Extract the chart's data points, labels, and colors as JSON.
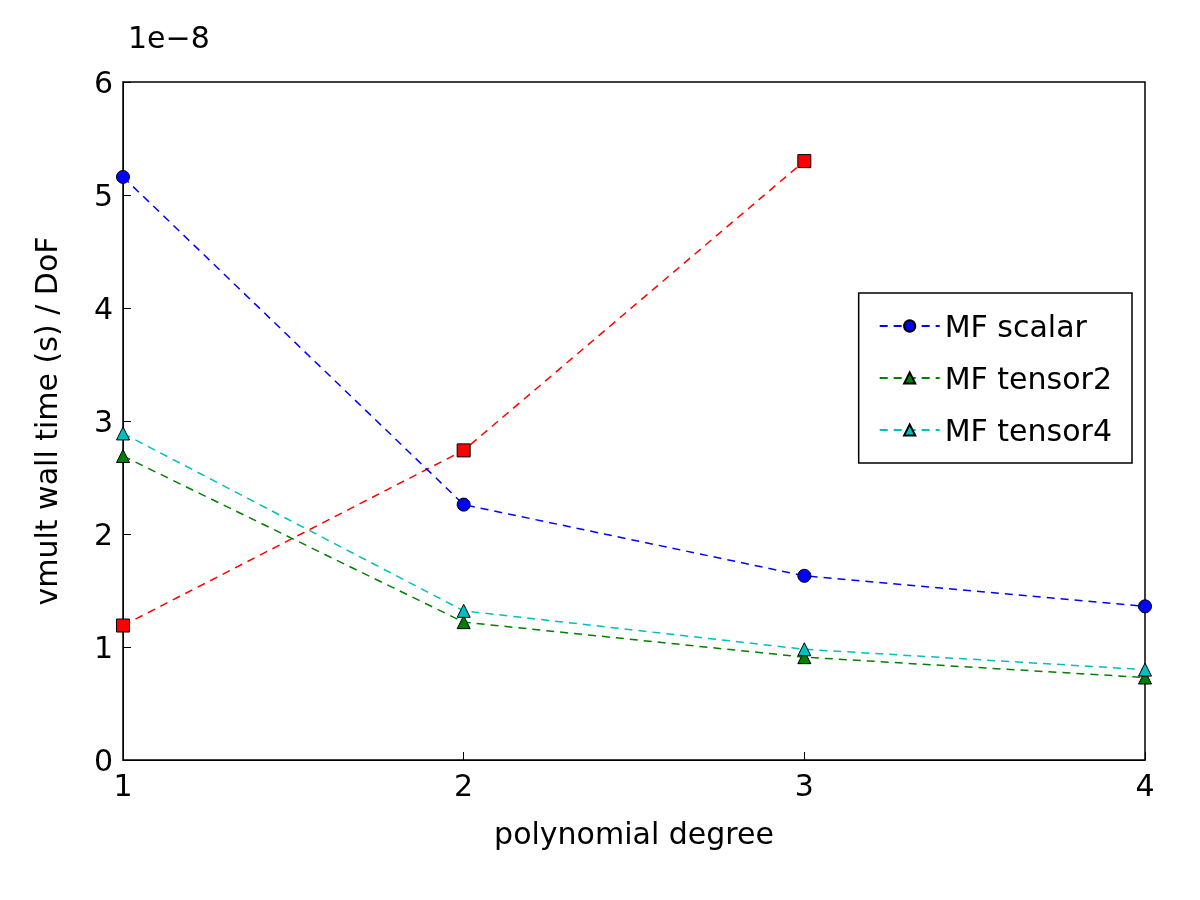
{
  "chart_data": {
    "type": "line",
    "xlabel": "polynomial degree",
    "ylabel": "vmult wall time (s) / DoF",
    "annotations": [
      "1e−8"
    ],
    "x": [
      1,
      2,
      3,
      4
    ],
    "xlim": [
      1,
      4
    ],
    "xticks": [
      1,
      2,
      3,
      4
    ],
    "ylim": [
      0,
      6
    ],
    "yticks": [
      0,
      1,
      2,
      3,
      4,
      5,
      6
    ],
    "grid": false,
    "legend": "right",
    "line_style": "dashed",
    "series": [
      {
        "color": "#ff0000",
        "marker": "square",
        "values": [
          1.19,
          2.74,
          5.3,
          null
        ]
      },
      {
        "name": "MF scalar",
        "color": "#0000ff",
        "marker": "circle",
        "values": [
          5.16,
          2.26,
          1.63,
          1.36
        ]
      },
      {
        "name": "MF tensor2",
        "color": "#008000",
        "marker": "triangle",
        "values": [
          2.69,
          1.22,
          0.91,
          0.73
        ]
      },
      {
        "name": "MF tensor4",
        "color": "#00bfbf",
        "marker": "triangle",
        "values": [
          2.89,
          1.32,
          0.98,
          0.8
        ]
      }
    ]
  }
}
